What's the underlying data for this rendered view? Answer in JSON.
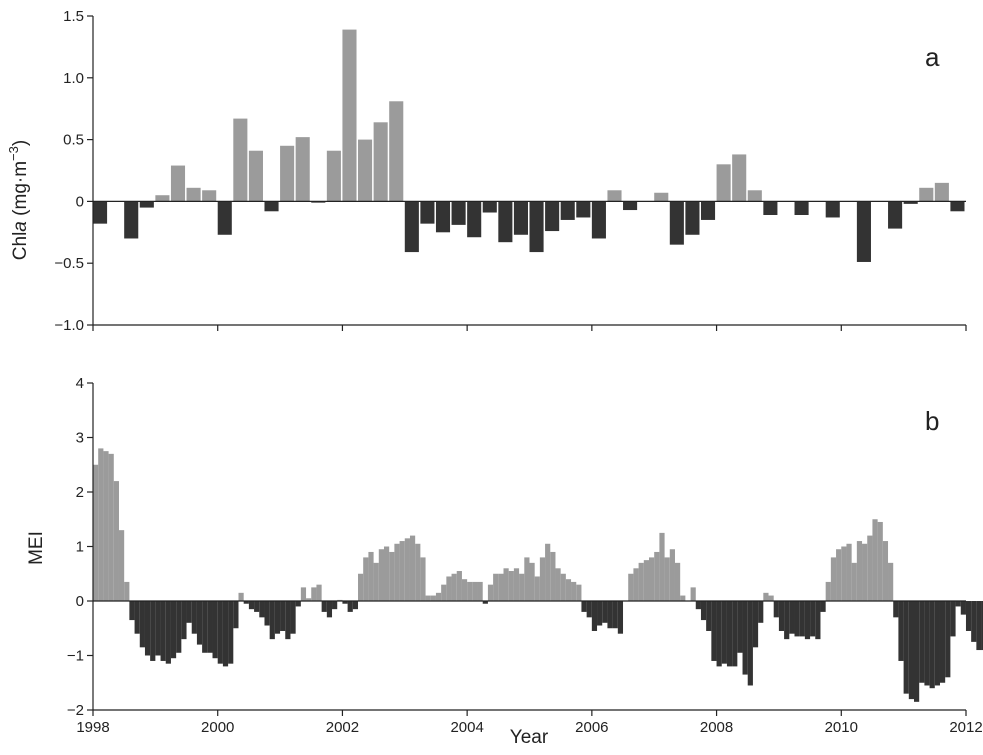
{
  "colors": {
    "positive": "#9b9b9b",
    "negative": "#333333",
    "axis": "#222222"
  },
  "chart_data": [
    {
      "type": "bar",
      "panel_label": "a",
      "ylabel": "Chl",
      "ylabel_italic": "a",
      "ylabel_unit": " (mg·m",
      "ylabel_sup": "−3",
      "ylabel_close": ")",
      "xlim": [
        1998,
        2012
      ],
      "ylim": [
        -1.0,
        1.5
      ],
      "yticks": [
        -1.0,
        -0.5,
        0,
        0.5,
        1.0,
        1.5
      ],
      "ytick_labels": [
        "−1.0",
        "−0.5",
        "0",
        "0.5",
        "1.0",
        "1.5"
      ],
      "bar_width": 0.25,
      "x": [
        1998.0,
        1998.25,
        1998.5,
        1998.75,
        1999.0,
        1999.25,
        1999.5,
        1999.75,
        2000.0,
        2000.25,
        2000.5,
        2000.75,
        2001.0,
        2001.25,
        2001.5,
        2001.75,
        2002.0,
        2002.25,
        2002.5,
        2002.75,
        2003.0,
        2003.25,
        2003.5,
        2003.75,
        2004.0,
        2004.25,
        2004.5,
        2004.75,
        2005.0,
        2005.25,
        2005.5,
        2005.75,
        2006.0,
        2006.25,
        2006.5,
        2006.75,
        2007.0,
        2007.25,
        2007.5,
        2007.75,
        2008.0,
        2008.25,
        2008.5,
        2008.75,
        2009.0,
        2009.25,
        2009.5,
        2009.75,
        2010.0,
        2010.25,
        2010.5,
        2010.75,
        2011.0,
        2011.25,
        2011.5,
        2011.75
      ],
      "values": [
        -0.18,
        0,
        -0.3,
        -0.05,
        0.05,
        0.29,
        0.11,
        0.09,
        -0.27,
        0.67,
        0.41,
        -0.08,
        0.45,
        0.52,
        -0.01,
        0.41,
        1.39,
        0.5,
        0.64,
        0.81,
        -0.41,
        -0.18,
        -0.25,
        -0.19,
        -0.29,
        -0.09,
        -0.33,
        -0.27,
        -0.41,
        -0.24,
        -0.15,
        -0.13,
        -0.3,
        0.09,
        -0.07,
        0,
        0.07,
        -0.35,
        -0.27,
        -0.15,
        0.3,
        0.38,
        0.09,
        -0.11,
        0,
        -0.11,
        0,
        -0.13,
        0,
        -0.49,
        0,
        -0.22,
        -0.02,
        0.11,
        0.15,
        -0.08
      ]
    },
    {
      "type": "bar",
      "panel_label": "b",
      "ylabel": "MEI",
      "xlabel": "Year",
      "xlim": [
        1998,
        2012
      ],
      "ylim": [
        -2,
        4
      ],
      "yticks": [
        -2,
        -1,
        0,
        1,
        2,
        3,
        4
      ],
      "ytick_labels": [
        "−2",
        "−1",
        "0",
        "1",
        "2",
        "3",
        "4"
      ],
      "xticks": [
        1998,
        2000,
        2002,
        2004,
        2006,
        2008,
        2010,
        2012
      ],
      "xtick_labels": [
        "1998",
        "2000",
        "2002",
        "2004",
        "2006",
        "2008",
        "2010",
        "2012"
      ],
      "bar_width": 0.08333,
      "start_year": 1998,
      "values": [
        2.5,
        2.8,
        2.75,
        2.7,
        2.2,
        1.3,
        0.35,
        -0.35,
        -0.6,
        -0.85,
        -1.0,
        -1.1,
        -1.0,
        -1.1,
        -1.15,
        -1.05,
        -0.95,
        -0.7,
        -0.4,
        -0.6,
        -0.8,
        -0.95,
        -0.95,
        -1.05,
        -1.15,
        -1.2,
        -1.15,
        -0.5,
        0.15,
        -0.05,
        -0.15,
        -0.2,
        -0.3,
        -0.45,
        -0.7,
        -0.6,
        -0.55,
        -0.7,
        -0.6,
        -0.1,
        0.25,
        0.05,
        0.25,
        0.3,
        -0.2,
        -0.3,
        -0.15,
        0.02,
        -0.05,
        -0.2,
        -0.15,
        0.5,
        0.8,
        0.9,
        0.7,
        0.95,
        1.0,
        0.9,
        1.05,
        1.1,
        1.15,
        1.2,
        1.05,
        0.8,
        0.1,
        0.1,
        0.15,
        0.3,
        0.45,
        0.5,
        0.55,
        0.4,
        0.35,
        0.35,
        0.35,
        -0.05,
        0.3,
        0.5,
        0.5,
        0.6,
        0.55,
        0.6,
        0.5,
        0.8,
        0.7,
        0.45,
        0.8,
        1.05,
        0.9,
        0.6,
        0.5,
        0.4,
        0.35,
        0.3,
        -0.2,
        -0.3,
        -0.55,
        -0.45,
        -0.4,
        -0.5,
        -0.5,
        -0.6,
        0,
        0.5,
        0.6,
        0.7,
        0.75,
        0.8,
        0.9,
        1.25,
        0.8,
        0.95,
        0.7,
        0.1,
        0,
        0.25,
        -0.15,
        -0.35,
        -0.55,
        -1.1,
        -1.2,
        -1.15,
        -1.2,
        -1.2,
        -0.95,
        -1.35,
        -1.55,
        -0.85,
        -0.4,
        0.15,
        0.1,
        -0.3,
        -0.55,
        -0.7,
        -0.6,
        -0.65,
        -0.65,
        -0.7,
        -0.65,
        -0.7,
        -0.2,
        0.35,
        0.8,
        0.95,
        1.0,
        1.05,
        0.7,
        1.1,
        1.05,
        1.2,
        1.5,
        1.45,
        1.1,
        0.7,
        -0.3,
        -1.1,
        -1.7,
        -1.8,
        -1.85,
        -1.5,
        -1.55,
        -1.6,
        -1.55,
        -1.5,
        -1.4,
        -0.65,
        -0.1,
        -0.25,
        -0.55,
        -0.75,
        -0.9,
        -0.9,
        -0.95,
        -0.95
      ]
    }
  ]
}
